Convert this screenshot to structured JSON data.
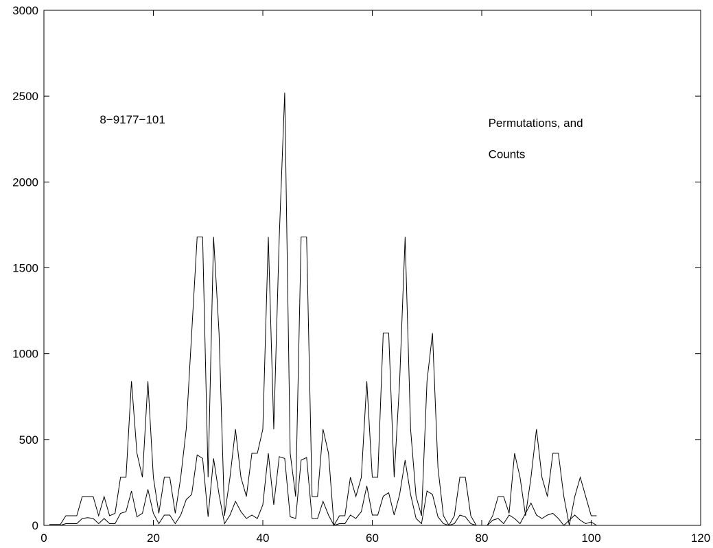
{
  "chart_data": {
    "type": "line",
    "title": "",
    "xlabel": "",
    "ylabel": "",
    "xlim": [
      0,
      120
    ],
    "ylim": [
      0,
      3000
    ],
    "xticks": [
      0,
      20,
      40,
      60,
      80,
      100,
      120
    ],
    "yticks": [
      0,
      500,
      1000,
      1500,
      2000,
      2500,
      3000
    ],
    "grid": false,
    "annotations": [
      {
        "text": "8−9177−101",
        "x": 10.2,
        "y": 2340
      },
      {
        "text": "Permutations, and",
        "x": 81.2,
        "y": 2320
      },
      {
        "text": "Counts",
        "x": 81.2,
        "y": 2140
      }
    ],
    "series": [
      {
        "x": [
          1,
          2,
          3,
          4,
          5,
          6,
          7,
          8,
          9,
          10,
          11,
          12,
          13,
          14,
          15,
          16,
          17,
          18,
          19,
          20,
          21,
          22,
          23,
          24,
          25,
          26,
          27,
          28,
          29,
          30,
          31,
          32,
          33,
          34,
          35,
          36,
          37,
          38,
          39,
          40,
          41,
          42,
          43,
          44,
          45,
          46,
          47,
          48,
          49,
          50,
          51,
          52,
          53,
          54,
          55,
          56,
          57,
          58,
          59,
          60,
          61,
          62,
          63,
          64,
          65,
          66,
          67,
          68,
          69,
          70,
          71,
          72,
          73,
          74,
          75,
          76,
          77,
          78,
          79,
          80,
          81,
          82,
          83,
          84,
          85,
          86,
          87,
          88,
          89,
          90,
          91,
          92,
          93,
          94,
          95,
          96,
          97,
          98,
          99,
          100,
          101
        ],
        "values": [
          5,
          5,
          5,
          56,
          56,
          56,
          168,
          168,
          168,
          56,
          168,
          56,
          70,
          280,
          280,
          840,
          420,
          280,
          840,
          280,
          70,
          280,
          280,
          70,
          280,
          560,
          1120,
          1680,
          1680,
          280,
          1680,
          1120,
          56,
          280,
          560,
          280,
          168,
          420,
          420,
          560,
          1680,
          560,
          1680,
          2520,
          420,
          168,
          1680,
          1680,
          168,
          168,
          560,
          420,
          0,
          56,
          56,
          280,
          168,
          280,
          840,
          280,
          280,
          1120,
          1120,
          280,
          840,
          1680,
          560,
          168,
          56,
          840,
          1120,
          336,
          56,
          0,
          56,
          280,
          280,
          56,
          0,
          0,
          0,
          56,
          168,
          168,
          70,
          420,
          280,
          56,
          280,
          560,
          280,
          168,
          420,
          420,
          168,
          0,
          168,
          280,
          168,
          56,
          56
        ]
      },
      {
        "x": [
          1,
          2,
          3,
          4,
          5,
          6,
          7,
          8,
          9,
          10,
          11,
          12,
          13,
          14,
          15,
          16,
          17,
          18,
          19,
          20,
          21,
          22,
          23,
          24,
          25,
          26,
          27,
          28,
          29,
          30,
          31,
          32,
          33,
          34,
          35,
          36,
          37,
          38,
          39,
          40,
          41,
          42,
          43,
          44,
          45,
          46,
          47,
          48,
          49,
          50,
          51,
          52,
          53,
          54,
          55,
          56,
          57,
          58,
          59,
          60,
          61,
          62,
          63,
          64,
          65,
          66,
          67,
          68,
          69,
          70,
          71,
          72,
          73,
          74,
          75,
          76,
          77,
          78,
          79,
          80,
          81,
          82,
          83,
          84,
          85,
          86,
          87,
          88,
          89,
          90,
          91,
          92,
          93,
          94,
          95,
          96,
          97,
          98,
          99,
          100,
          101
        ],
        "values": [
          0,
          0,
          0,
          10,
          10,
          10,
          40,
          45,
          40,
          10,
          40,
          10,
          10,
          70,
          80,
          200,
          50,
          70,
          210,
          70,
          10,
          60,
          60,
          10,
          60,
          150,
          180,
          410,
          390,
          50,
          390,
          180,
          10,
          60,
          140,
          80,
          40,
          60,
          40,
          120,
          420,
          120,
          400,
          390,
          50,
          40,
          380,
          395,
          40,
          40,
          140,
          60,
          0,
          10,
          10,
          60,
          40,
          80,
          230,
          60,
          60,
          170,
          190,
          60,
          180,
          380,
          180,
          40,
          10,
          200,
          180,
          50,
          10,
          0,
          10,
          60,
          50,
          10,
          0,
          0,
          0,
          30,
          40,
          10,
          60,
          40,
          10,
          70,
          130,
          60,
          40,
          60,
          70,
          40,
          0,
          30,
          60,
          30,
          10,
          20,
          0
        ]
      }
    ]
  }
}
